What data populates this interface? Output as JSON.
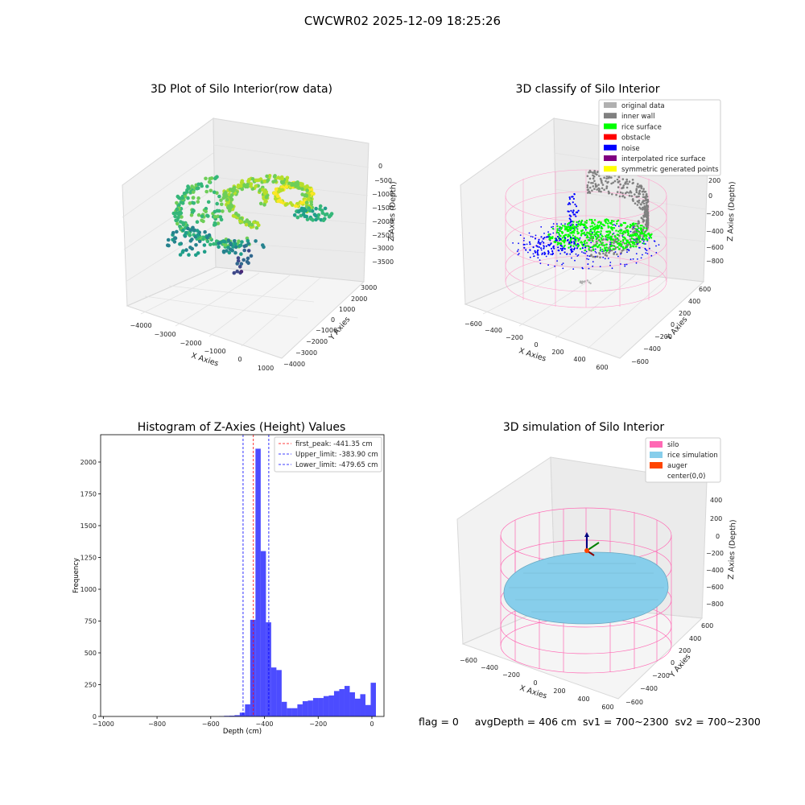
{
  "figure": {
    "suptitle": "CWCWR02 2025-12-09 18:25:26",
    "footer": {
      "flag": "flag = 0",
      "avg_depth": "avgDepth = 406 cm",
      "sv1": "sv1 = 700~2300",
      "sv2": "sv2 = 700~2300"
    }
  },
  "colors": {
    "original_data": "#b0b0b0",
    "inner_wall": "#808080",
    "rice_surface": "#00ff00",
    "obstacle": "#ff0000",
    "noise": "#0000ff",
    "interpolated_rice_surface": "#800080",
    "symmetric_generated_points": "#ffff00",
    "silo": "#ff69b4",
    "rice_simulation": "#87ceeb",
    "auger": "#ff4500",
    "histogram_bar": "#0000ff",
    "first_peak_line": "#ff0000",
    "limit_line": "#0000ff"
  },
  "chart_data": [
    {
      "type": "scatter",
      "title": "3D Plot of Silo Interior(row data)",
      "xlabel": "X Axies",
      "ylabel": "Y Axies",
      "zlabel": "Z Axies (Depth)",
      "x_ticks": [
        "−4000",
        "−3000",
        "−2000",
        "−1000",
        "0",
        "1000"
      ],
      "y_ticks": [
        "3000",
        "2000",
        "1000",
        "0",
        "−1000",
        "−2000",
        "−3000",
        "−4000"
      ],
      "z_ticks": [
        "0",
        "−500",
        "−1000",
        "−1500",
        "−2000",
        "−2500",
        "−3000",
        "−3500"
      ],
      "xlim": [
        -4500,
        1200
      ],
      "ylim": [
        -4300,
        3300
      ],
      "zlim": [
        -3800,
        100
      ],
      "grid": true,
      "colormap": "viridis (by depth)"
    },
    {
      "type": "scatter",
      "title": "3D classify of Silo Interior",
      "xlabel": "X Axies",
      "ylabel": "Y Axies",
      "zlabel": "Z Axies (Depth)",
      "x_ticks": [
        "−600",
        "−400",
        "−200",
        "0",
        "200",
        "400",
        "600"
      ],
      "y_ticks": [
        "600",
        "400",
        "200",
        "0",
        "−200",
        "−400",
        "−600"
      ],
      "z_ticks": [
        "200",
        "0",
        "−200",
        "−400",
        "−600",
        "−800"
      ],
      "xlim": [
        -650,
        650
      ],
      "ylim": [
        -650,
        650
      ],
      "zlim": [
        -900,
        300
      ],
      "grid": true,
      "legend_position": "top-right",
      "legend": [
        {
          "label": "original data",
          "color": "#b0b0b0"
        },
        {
          "label": "inner wall",
          "color": "#808080"
        },
        {
          "label": "rice surface",
          "color": "#00ff00"
        },
        {
          "label": "obstacle",
          "color": "#ff0000"
        },
        {
          "label": "noise",
          "color": "#0000ff"
        },
        {
          "label": "interpolated rice surface",
          "color": "#800080"
        },
        {
          "label": "symmetric generated points",
          "color": "#ffff00"
        }
      ]
    },
    {
      "type": "bar",
      "title": "Histogram of Z-Axies (Height) Values",
      "xlabel": "Depth (cm)",
      "ylabel": "Frequency",
      "xlim": [
        -1010,
        45
      ],
      "ylim": [
        0,
        2215
      ],
      "x_ticks": [
        -1000,
        -800,
        -600,
        -400,
        -200,
        0
      ],
      "x_tick_labels": [
        "−1000",
        "−800",
        "−600",
        "−400",
        "−200",
        "0"
      ],
      "y_ticks": [
        0,
        250,
        500,
        750,
        1000,
        1250,
        1500,
        1750,
        2000
      ],
      "bin_width": 19.5,
      "bin_start": -570,
      "values": [
        2,
        5,
        6,
        10,
        30,
        95,
        760,
        2105,
        1300,
        740,
        385,
        365,
        115,
        65,
        65,
        95,
        120,
        125,
        145,
        145,
        160,
        165,
        200,
        215,
        240,
        190,
        140,
        175,
        90,
        265
      ],
      "legend_position": "top-right",
      "lines": [
        {
          "label": "first_peak: -441.35 cm",
          "x": -441.35,
          "color": "#ff0000"
        },
        {
          "label": "Upper_limit: -383.90 cm",
          "x": -383.9,
          "color": "#0000ff"
        },
        {
          "label": "Lower_limit: -479.65 cm",
          "x": -479.65,
          "color": "#0000ff"
        }
      ]
    },
    {
      "type": "area",
      "title": "3D simulation of Silo Interior",
      "xlabel": "X Axies",
      "ylabel": "Y Axies",
      "zlabel": "Z Axies (Depth)",
      "x_ticks": [
        "−600",
        "−400",
        "−200",
        "0",
        "200",
        "400",
        "600"
      ],
      "y_ticks": [
        "600",
        "400",
        "200",
        "0",
        "−200",
        "−400",
        "−600"
      ],
      "z_ticks": [
        "400",
        "200",
        "0",
        "−200",
        "−400",
        "−600",
        "−800"
      ],
      "xlim": [
        -650,
        650
      ],
      "ylim": [
        -650,
        650
      ],
      "zlim": [
        -900,
        450
      ],
      "grid": true,
      "legend_position": "top-right",
      "legend": [
        {
          "label": "silo",
          "color": "#ff69b4"
        },
        {
          "label": "rice simulation",
          "color": "#87ceeb"
        },
        {
          "label": "auger",
          "color": "#ff4500"
        },
        {
          "label": "center(0,0)",
          "color": ""
        }
      ]
    }
  ]
}
